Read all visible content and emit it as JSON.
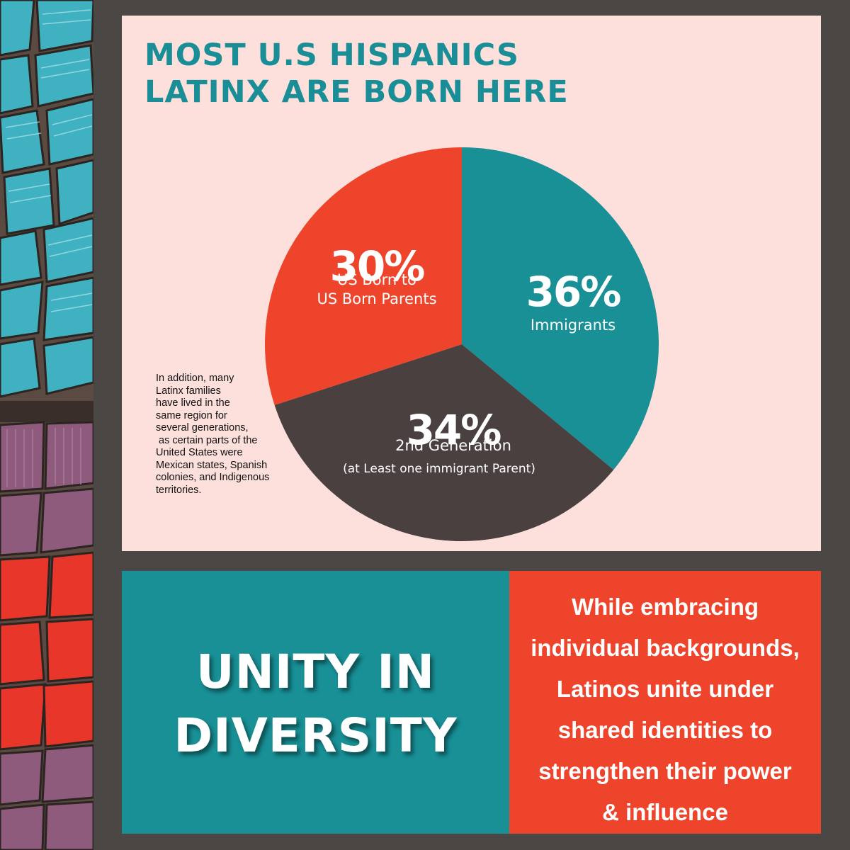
{
  "colors": {
    "background": "#4a4745",
    "panel": "#fde0dc",
    "teal": "#189096",
    "headline": "#1a8e96",
    "red": "#ef442c",
    "charcoal": "#4a403f"
  },
  "headline": {
    "line1": "MOST U.S HISPANICS",
    "line2": "LATINX ARE BORN HERE"
  },
  "chart_data": {
    "type": "pie",
    "slices": [
      {
        "percent_label": "36%",
        "value": 36,
        "label": "Immigrants",
        "sublabel": "",
        "color": "#189096"
      },
      {
        "percent_label": "34%",
        "value": 34,
        "label": "2nd Generation",
        "sublabel": "(at Least one immigrant Parent)",
        "color": "#4a403f"
      },
      {
        "percent_label": "30%",
        "value": 30,
        "label_line1": "US Born to",
        "label_line2": "US Born Parents",
        "color": "#ef442c"
      }
    ]
  },
  "side_note": {
    "lines": [
      "In addition, many",
      "Latinx families",
      "have lived in the",
      "same region for",
      "several generations,",
      " as certain parts of the",
      "United States were",
      "Mexican states, Spanish",
      "colonies, and Indigenous",
      "territories."
    ]
  },
  "unity": {
    "line1": "UNITY IN",
    "line2": "DIVERSITY"
  },
  "message": {
    "lines": [
      "While embracing",
      "individual backgrounds,",
      "Latinos unite under",
      "shared identities to",
      "strengthen their power",
      "& influence"
    ]
  }
}
